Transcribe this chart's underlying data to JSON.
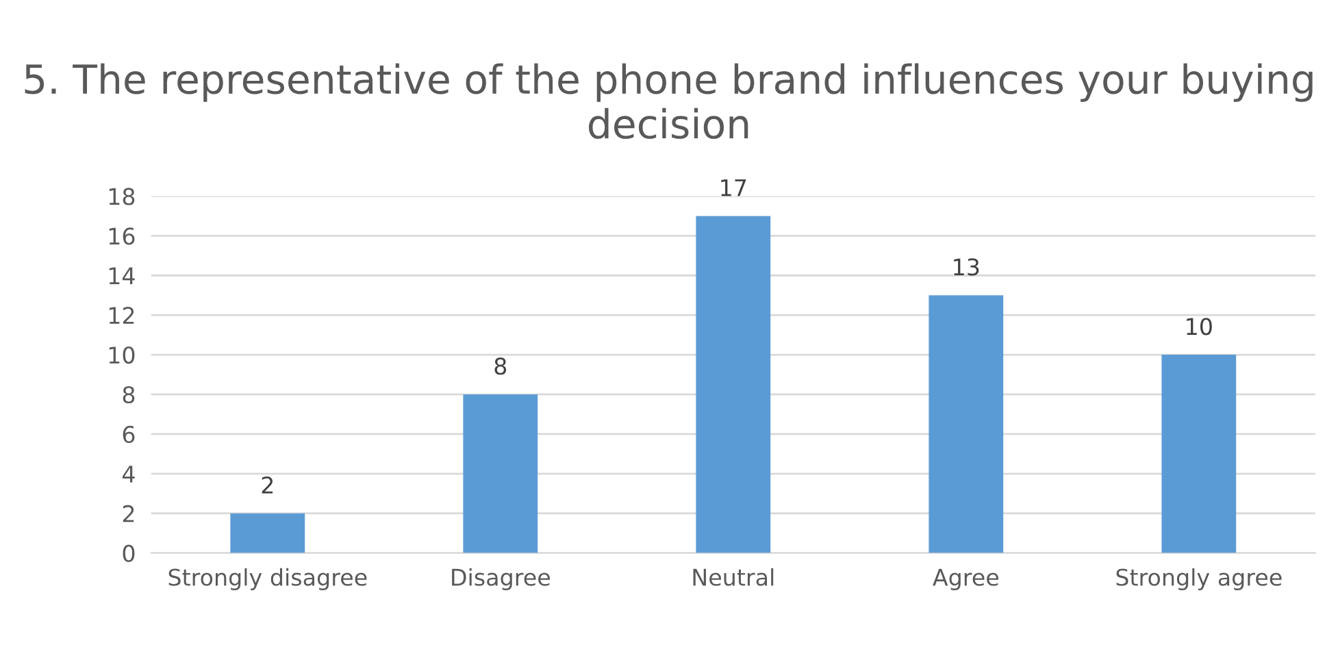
{
  "chart_data": {
    "type": "bar",
    "title": "5. The representative of the phone brand influences your buying decision",
    "categories": [
      "Strongly disagree",
      "Disagree",
      "Neutral",
      "Agree",
      "Strongly agree"
    ],
    "values": [
      2,
      8,
      17,
      13,
      10
    ],
    "color": "#5b9bd5",
    "ylim": [
      0,
      18
    ],
    "yticks": [
      0,
      2,
      4,
      6,
      8,
      10,
      12,
      14,
      16,
      18
    ],
    "grid": "y",
    "data_labels": true
  }
}
